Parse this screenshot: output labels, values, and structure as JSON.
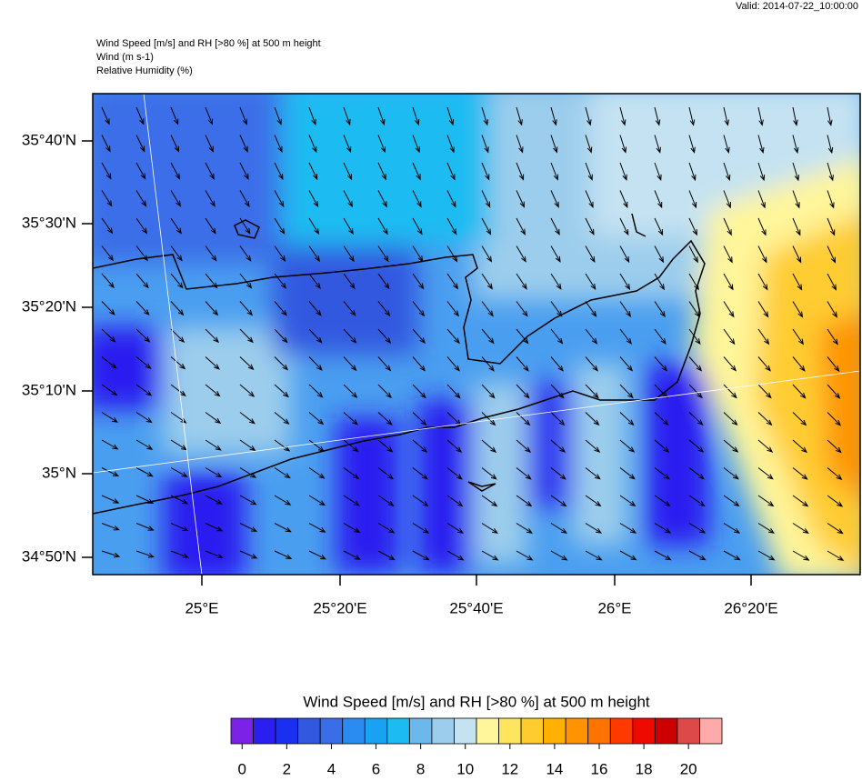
{
  "header": {
    "valid": "Valid: 2014-07-22_10:00:00",
    "lines": [
      "Wind Speed [m/s] and RH [>80 %] at 500 m height",
      "Wind   (m s-1)",
      "Relative Humidity   (%)"
    ]
  },
  "map": {
    "lat_labels": [
      "35°40'N",
      "35°30'N",
      "35°20'N",
      "35°10'N",
      "35°N",
      "34°50'N"
    ],
    "lon_labels": [
      "25°E",
      "25°20'E",
      "25°40'E",
      "26°E",
      "26°20'E"
    ]
  },
  "colorbar": {
    "title": "Wind Speed [m/s] and RH [>80 %] at 500 m height",
    "colors": [
      "#7b22e6",
      "#2a1ff0",
      "#1a30f0",
      "#3358e0",
      "#3a6ee8",
      "#2a8cf0",
      "#1aa2f2",
      "#1cbcf2",
      "#6cb8ec",
      "#9ccdec",
      "#c4e2f2",
      "#fff59a",
      "#ffe460",
      "#ffcc30",
      "#ffb000",
      "#ff9400",
      "#ff7400",
      "#ff3a00",
      "#ee0a00",
      "#cc0000",
      "#dd4848",
      "#ffaaaa"
    ],
    "ticks": [
      0,
      2,
      4,
      6,
      8,
      10,
      12,
      14,
      16,
      18,
      20
    ]
  }
}
